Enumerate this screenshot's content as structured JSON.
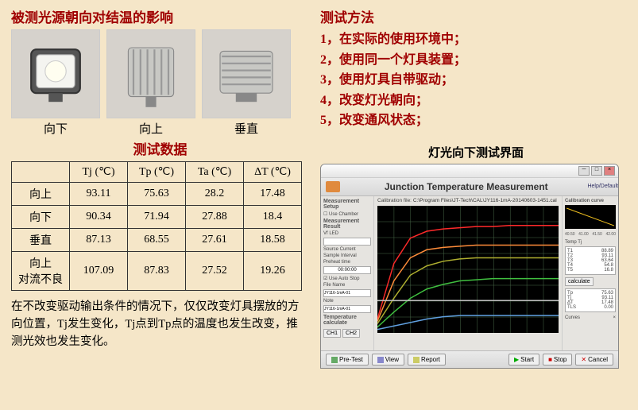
{
  "left": {
    "title": "被测光源朝向对结温的影响",
    "lamps": [
      {
        "label": "向下"
      },
      {
        "label": "向上"
      },
      {
        "label": "垂直"
      }
    ],
    "test_title": "测试数据",
    "table": {
      "headers": [
        "",
        "Tj (℃)",
        "Tp (℃)",
        "Ta (℃)",
        "ΔT (℃)"
      ],
      "rows": [
        [
          "向上",
          "93.11",
          "75.63",
          "28.2",
          "17.48"
        ],
        [
          "向下",
          "90.34",
          "71.94",
          "27.88",
          "18.4"
        ],
        [
          "垂直",
          "87.13",
          "68.55",
          "27.61",
          "18.58"
        ],
        [
          "向上\n对流不良",
          "107.09",
          "87.83",
          "27.52",
          "19.26"
        ]
      ]
    },
    "note": "在不改变驱动输出条件的情况下，仅仅改变灯具摆放的方向位置，Tj发生变化，Tj点到Tp点的温度也发生改变，推测光效也发生变化。"
  },
  "right": {
    "method_title": "测试方法",
    "methods": [
      "1，在实际的使用环境中；",
      "2，使用同一个灯具装置；",
      "3，使用灯具自带驱动；",
      "4，改变灯光朝向；",
      "5，改变通风状态；"
    ],
    "chart_title": "灯光向下测试界面",
    "app": {
      "header": "Junction Temperature Measurement",
      "help": "Help/Default",
      "left_panel": {
        "h1": "Measurement Setup",
        "use_chamber": "Use Chamber",
        "h2": "Measurement Result",
        "vf_led": "Vf LED",
        "src_current": "Source Current",
        "sample_int": "Sample Interval",
        "preheat": "Preheat time",
        "t": "00:00:00",
        "auto_stop": "Use Auto Stop",
        "file_name": "File Name",
        "fn_val": "JY116-1mA-01",
        "note": "Note",
        "note_val": "JY116-1mA-01",
        "temp_calc": "Temperature calculate",
        "ch1": "CH1",
        "ch2": "CH2"
      },
      "cal_label": "Calibration file:",
      "cal_path": "C:\\Program Files\\JT-Tech\\CAL\\JY116-1mA-20140603-1451.cal",
      "chart": {
        "bg": "#000000",
        "grid": "#4a6b4a",
        "series": [
          {
            "color": "#ff2a2a",
            "vals": [
              12,
              60,
              82,
              88,
              90,
              91,
              92,
              92,
              93,
              93,
              93,
              93
            ]
          },
          {
            "color": "#ff8c3a",
            "vals": [
              10,
              45,
              65,
              72,
              74,
              75,
              76,
              76,
              76,
              76,
              76,
              76
            ]
          },
          {
            "color": "#b0b030",
            "vals": [
              8,
              30,
              50,
              58,
              62,
              64,
              65,
              65,
              65,
              65,
              65,
              65
            ]
          },
          {
            "color": "#40c040",
            "vals": [
              5,
              18,
              30,
              38,
              42,
              45,
              46,
              47,
              47,
              47,
              47,
              47
            ]
          },
          {
            "color": "#60a0e0",
            "vals": [
              3,
              6,
              9,
              12,
              14,
              15,
              15,
              15,
              15,
              15,
              15,
              15
            ]
          },
          {
            "color": "#c0c0c0",
            "vals": [
              28,
              28,
              28,
              28,
              28,
              28,
              28,
              28,
              28,
              28,
              28,
              28
            ]
          }
        ],
        "ylim": [
          0,
          110
        ],
        "xlim": [
          0,
          11
        ]
      },
      "mini": {
        "color": "#f0c020",
        "ticks": [
          "40.50",
          "41.00",
          "41.50",
          "42.00"
        ]
      },
      "right_data": {
        "temp_tj": "Temp Tj",
        "labels": [
          "T1",
          "T2",
          "T3",
          "T4",
          "T5"
        ],
        "vals": [
          "88.89",
          "93.11",
          "63.64",
          "54.8",
          "16.8"
        ],
        "calc": "calculate",
        "tp": [
          "Tp",
          "75.63"
        ],
        "tj": [
          "Tj",
          "93.11"
        ],
        "dt": [
          "ΔT",
          "17.48"
        ],
        "tls": [
          "TLS",
          "0.00"
        ],
        "curves": [
          "Curves",
          "×"
        ]
      },
      "buttons": {
        "pretest": "Pre-Test",
        "view": "View",
        "report": "Report",
        "start": "Start",
        "stop": "Stop",
        "cancel": "Cancel"
      }
    }
  }
}
